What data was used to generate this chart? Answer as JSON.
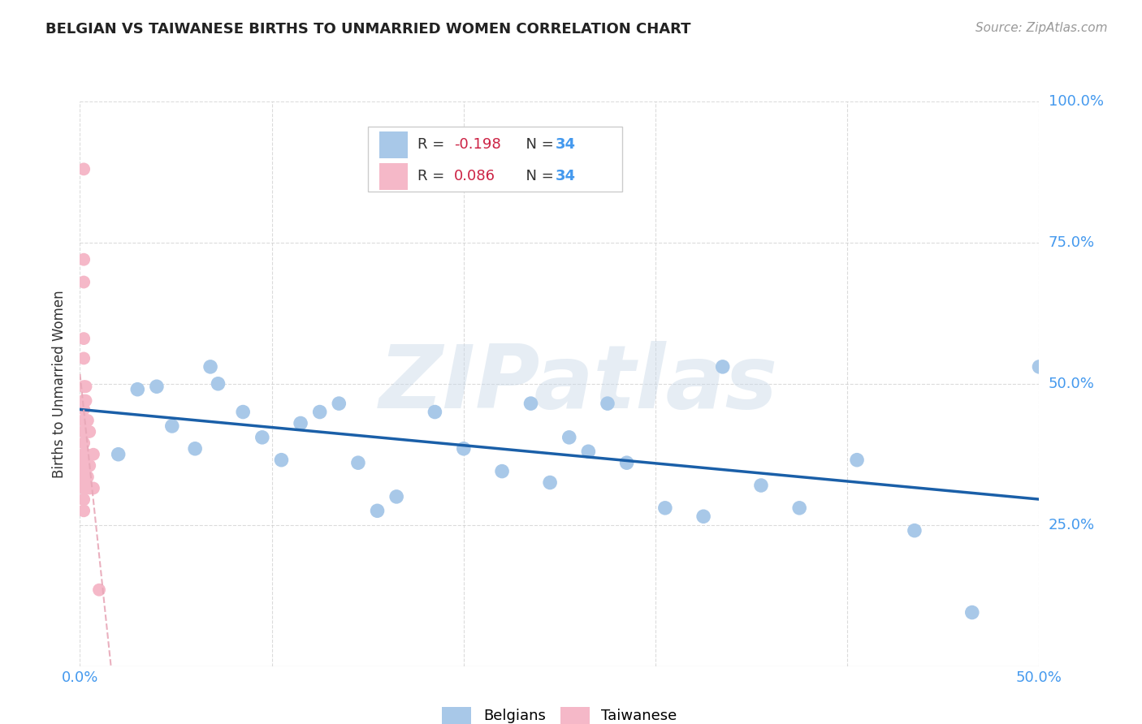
{
  "title": "BELGIAN VS TAIWANESE BIRTHS TO UNMARRIED WOMEN CORRELATION CHART",
  "source": "Source: ZipAtlas.com",
  "ylabel": "Births to Unmarried Women",
  "xlim": [
    0.0,
    0.5
  ],
  "ylim": [
    0.0,
    1.0
  ],
  "xtick_positions": [
    0.0,
    0.1,
    0.2,
    0.3,
    0.4,
    0.5
  ],
  "xtick_labels": [
    "0.0%",
    "",
    "",
    "",
    "",
    "50.0%"
  ],
  "ytick_positions": [
    0.25,
    0.5,
    0.75,
    1.0
  ],
  "ytick_labels": [
    "25.0%",
    "50.0%",
    "75.0%",
    "100.0%"
  ],
  "R_belgian": -0.198,
  "R_taiwanese": 0.086,
  "N_belgian": 34,
  "N_taiwanese": 34,
  "belgian_color": "#a8c8e8",
  "taiwanese_color": "#f5b8c8",
  "belgian_line_color": "#1a5fa8",
  "taiwanese_line_color": "#e8a8b8",
  "background_color": "#ffffff",
  "grid_color": "#cccccc",
  "watermark": "ZIPatlas",
  "tick_color": "#4499ee",
  "label_color": "#333333",
  "legend_text_color": "#333333",
  "legend_R_color": "#cc2244",
  "legend_N_color": "#4499ee",
  "belgian_x": [
    0.02,
    0.03,
    0.04,
    0.048,
    0.06,
    0.068,
    0.072,
    0.085,
    0.095,
    0.105,
    0.115,
    0.125,
    0.135,
    0.145,
    0.155,
    0.165,
    0.185,
    0.2,
    0.22,
    0.235,
    0.245,
    0.255,
    0.265,
    0.275,
    0.285,
    0.305,
    0.325,
    0.335,
    0.355,
    0.375,
    0.405,
    0.435,
    0.465,
    0.5
  ],
  "belgian_y": [
    0.375,
    0.49,
    0.495,
    0.425,
    0.385,
    0.53,
    0.5,
    0.45,
    0.405,
    0.365,
    0.43,
    0.45,
    0.465,
    0.36,
    0.275,
    0.3,
    0.45,
    0.385,
    0.345,
    0.465,
    0.325,
    0.405,
    0.38,
    0.465,
    0.36,
    0.28,
    0.265,
    0.53,
    0.32,
    0.28,
    0.365,
    0.24,
    0.095,
    0.53
  ],
  "taiwanese_x": [
    0.002,
    0.002,
    0.002,
    0.002,
    0.002,
    0.002,
    0.002,
    0.002,
    0.002,
    0.002,
    0.002,
    0.002,
    0.002,
    0.002,
    0.002,
    0.002,
    0.002,
    0.002,
    0.002,
    0.002,
    0.003,
    0.003,
    0.003,
    0.003,
    0.004,
    0.004,
    0.004,
    0.004,
    0.005,
    0.005,
    0.005,
    0.007,
    0.007,
    0.01
  ],
  "taiwanese_y": [
    0.88,
    0.72,
    0.68,
    0.58,
    0.545,
    0.495,
    0.47,
    0.455,
    0.435,
    0.415,
    0.395,
    0.375,
    0.365,
    0.355,
    0.345,
    0.335,
    0.325,
    0.315,
    0.295,
    0.275,
    0.495,
    0.47,
    0.375,
    0.315,
    0.435,
    0.415,
    0.355,
    0.335,
    0.415,
    0.355,
    0.315,
    0.375,
    0.315,
    0.135
  ]
}
